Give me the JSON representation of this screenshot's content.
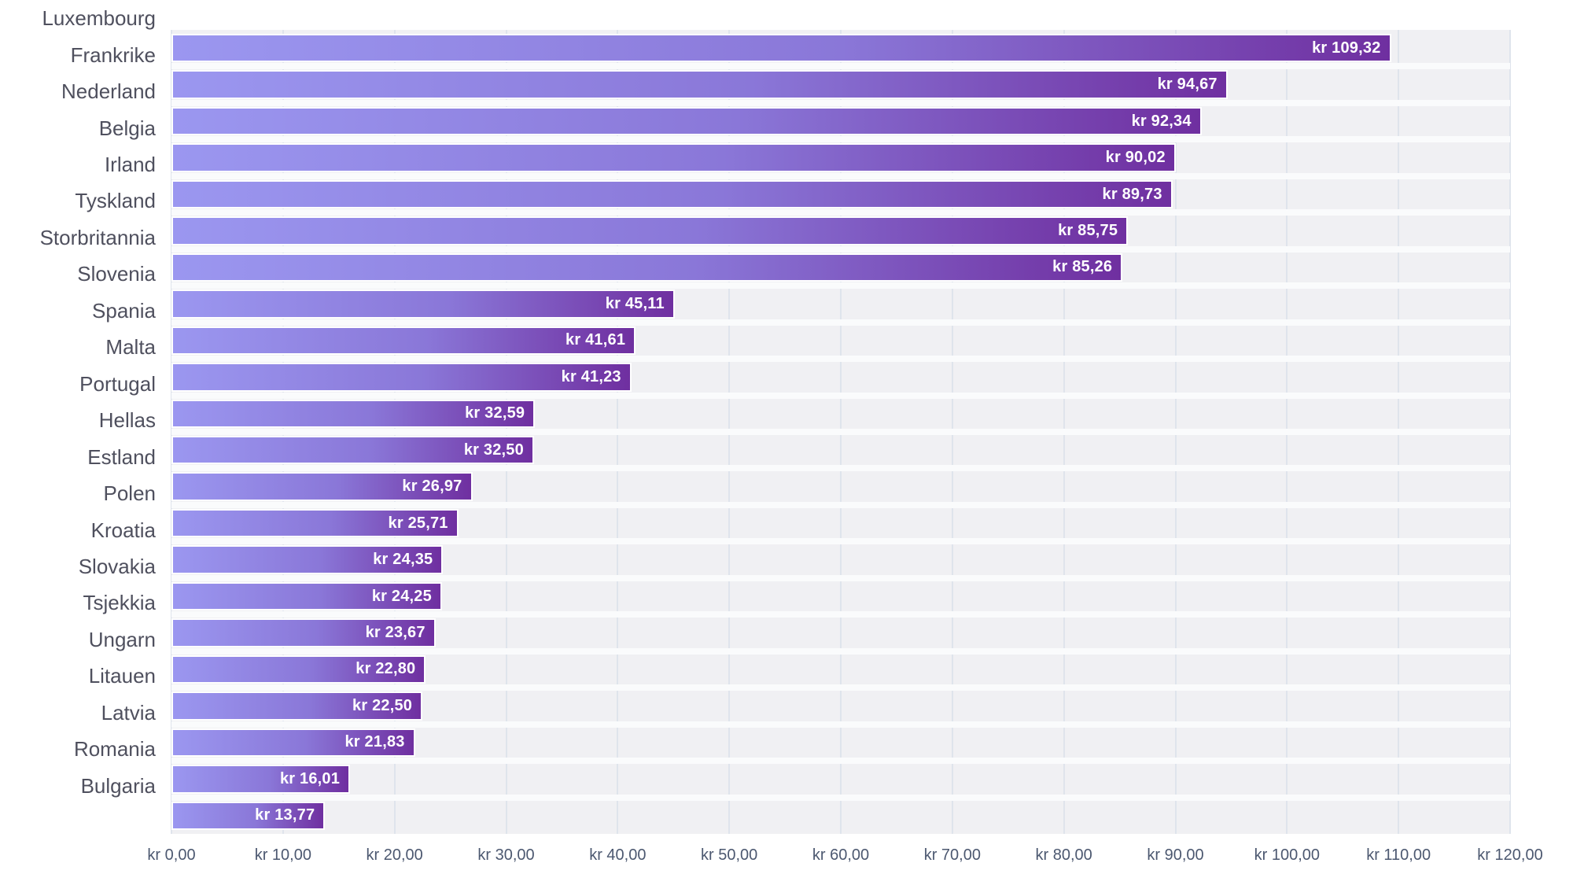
{
  "chart_data": {
    "type": "bar",
    "orientation": "horizontal",
    "title": "",
    "xlabel": "",
    "ylabel": "",
    "xlim": [
      0,
      120
    ],
    "grid": true,
    "legend": false,
    "value_prefix": "kr",
    "categories": [
      "Luxembourg",
      "Frankrike",
      "Nederland",
      "Belgia",
      "Irland",
      "Tyskland",
      "Storbritannia",
      "Slovenia",
      "Spania",
      "Malta",
      "Portugal",
      "Hellas",
      "Estland",
      "Polen",
      "Kroatia",
      "Slovakia",
      "Tsjekkia",
      "Ungarn",
      "Litauen",
      "Latvia",
      "Romania",
      "Bulgaria"
    ],
    "values": [
      109.32,
      94.67,
      92.34,
      90.02,
      89.73,
      85.75,
      85.26,
      45.11,
      41.61,
      41.23,
      32.59,
      32.5,
      26.97,
      25.71,
      24.35,
      24.25,
      23.67,
      22.8,
      22.5,
      21.83,
      16.01,
      13.77
    ],
    "value_labels": [
      "kr 109,32",
      "kr 94,67",
      "kr 92,34",
      "kr 90,02",
      "kr 89,73",
      "kr 85,75",
      "kr 85,26",
      "kr 45,11",
      "kr 41,61",
      "kr 41,23",
      "kr 32,59",
      "kr 32,50",
      "kr 26,97",
      "kr 25,71",
      "kr 24,35",
      "kr 24,25",
      "kr 23,67",
      "kr 22,80",
      "kr 22,50",
      "kr 21,83",
      "kr 16,01",
      "kr 13,77"
    ],
    "x_ticks": [
      "kr 0,00",
      "kr 10,00",
      "kr 20,00",
      "kr 30,00",
      "kr 40,00",
      "kr 50,00",
      "kr 60,00",
      "kr 70,00",
      "kr 80,00",
      "kr 90,00",
      "kr 100,00",
      "kr 110,00",
      "kr 120,00"
    ],
    "colors": {
      "bar_gradient_start": "#9b97f0",
      "bar_gradient_end": "#6f2fa0",
      "bar_border": "#ffffff",
      "plot_background": "#f0f0f3",
      "gridline": "#dfe4ec",
      "row_separator": "#fafbfc",
      "category_label": "#4f505e",
      "axis_label": "#4c5870",
      "value_label": "#ffffff",
      "page_background": "#ffffff"
    }
  }
}
